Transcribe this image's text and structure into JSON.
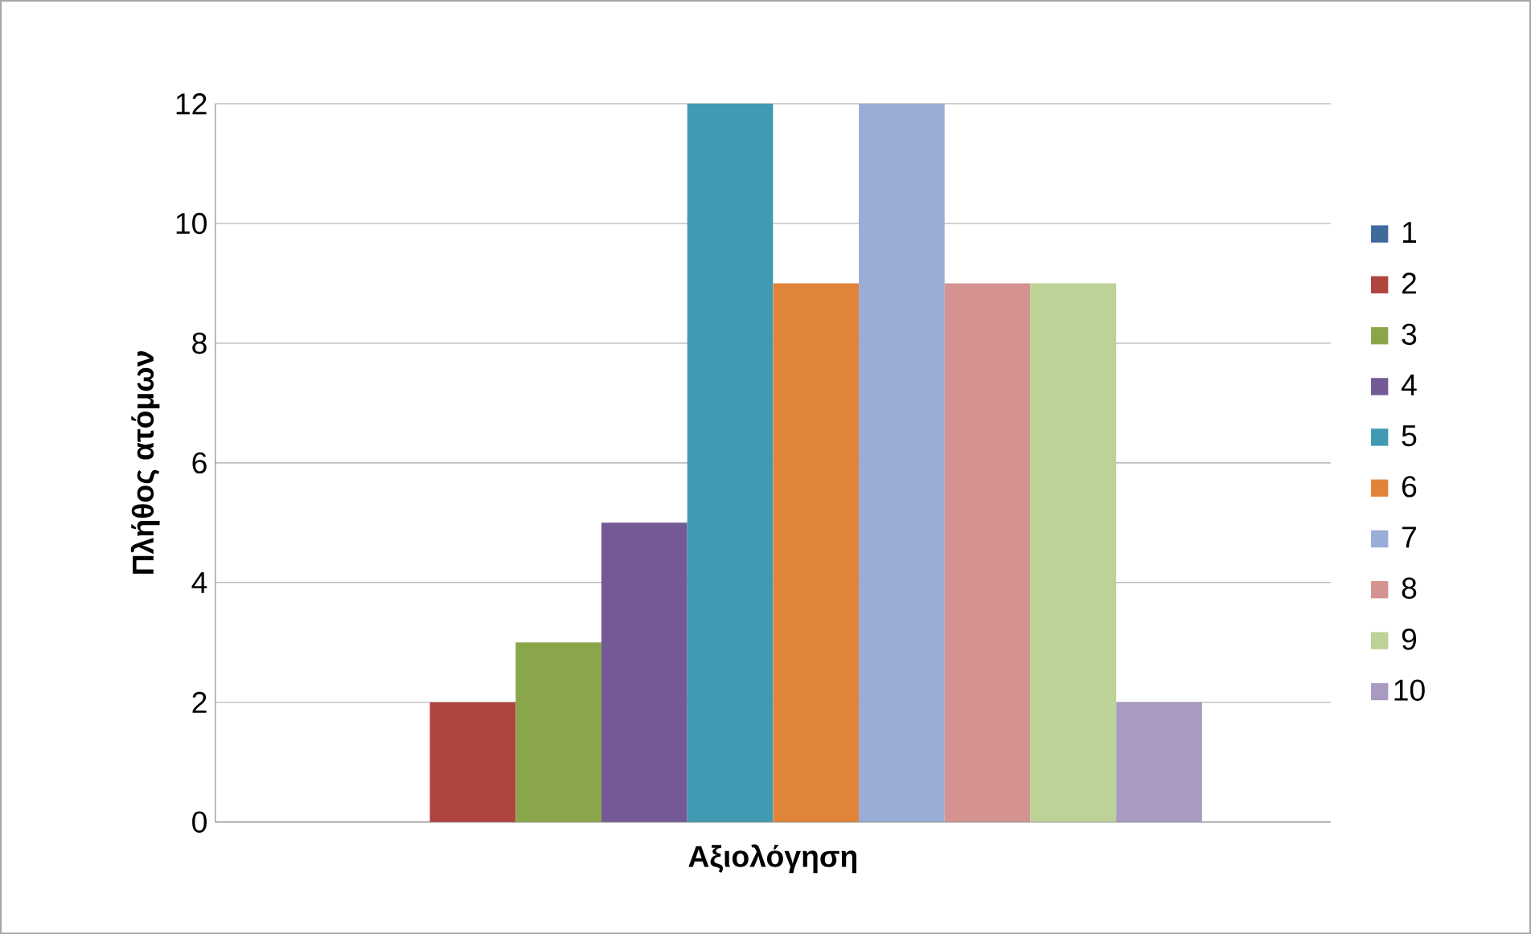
{
  "chart_data": {
    "type": "bar",
    "xlabel": "Αξιολόγηση",
    "ylabel": "Πλήθος ατόμων",
    "categories": [
      null
    ],
    "series": [
      {
        "name": "1",
        "color": "#3f6b9c",
        "values": [
          0
        ]
      },
      {
        "name": "2",
        "color": "#b0443f",
        "values": [
          2
        ]
      },
      {
        "name": "3",
        "color": "#8aa64b",
        "values": [
          3
        ]
      },
      {
        "name": "4",
        "color": "#735a94",
        "values": [
          5
        ]
      },
      {
        "name": "5",
        "color": "#3f9ab2",
        "values": [
          12
        ]
      },
      {
        "name": "6",
        "color": "#e0843a",
        "values": [
          9
        ]
      },
      {
        "name": "7",
        "color": "#99add6",
        "values": [
          12
        ]
      },
      {
        "name": "8",
        "color": "#d49391",
        "values": [
          9
        ]
      },
      {
        "name": "9",
        "color": "#bcd296",
        "values": [
          9
        ]
      },
      {
        "name": "10",
        "color": "#a99ac2",
        "values": [
          2
        ]
      }
    ],
    "ylim": [
      0,
      12
    ],
    "yticks": [
      0,
      2,
      4,
      6,
      8,
      10,
      12
    ],
    "grid": "y",
    "legend": "right"
  }
}
